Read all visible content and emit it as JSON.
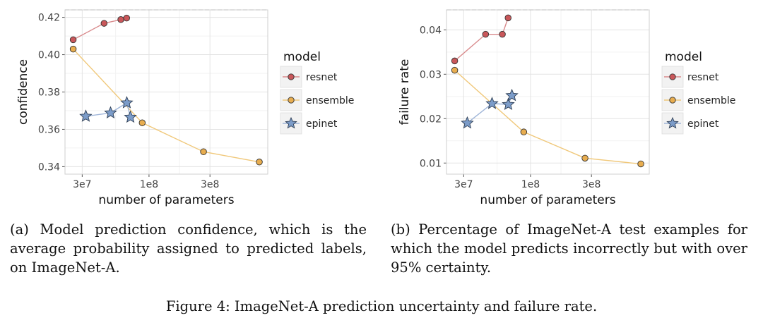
{
  "chart_data": [
    {
      "type": "line",
      "panel": "a",
      "xlabel": "number of parameters",
      "ylabel": "confidence",
      "xscale": "log",
      "xlim": [
        22000000,
        850000000
      ],
      "ylim": [
        0.336,
        0.424
      ],
      "xticks": [
        30000000,
        100000000,
        300000000
      ],
      "xtick_labels": [
        "3e7",
        "1e8",
        "3e8"
      ],
      "yticks": [
        0.34,
        0.36,
        0.38,
        0.4,
        0.42
      ],
      "ytick_labels": [
        "0.34",
        "0.36",
        "0.38",
        "0.40",
        "0.42"
      ],
      "grid": true,
      "legend_title": "model",
      "legend_placement": "right",
      "series": [
        {
          "name": "resnet",
          "color": "#c9575a",
          "line_color": "#d98b8d",
          "marker": "circle",
          "x": [
            25500000,
            44500000,
            60200000,
            66800000
          ],
          "y": [
            0.408,
            0.4168,
            0.4188,
            0.4196
          ]
        },
        {
          "name": "ensemble",
          "color": "#e8ad4f",
          "line_color": "#f0c87a",
          "marker": "circle",
          "x": [
            25500000,
            88500000,
            267000000,
            730000000
          ],
          "y": [
            0.403,
            0.3635,
            0.348,
            0.3425
          ]
        },
        {
          "name": "epinet",
          "color": "#7c9cc9",
          "line_color": "#9fb5d8",
          "marker": "star",
          "x": [
            32000000,
            50000000,
            67000000,
            71500000
          ],
          "y": [
            0.367,
            0.3688,
            0.3742,
            0.3665
          ]
        }
      ]
    },
    {
      "type": "line",
      "panel": "b",
      "xlabel": "number of parameters",
      "ylabel": "failure rate",
      "xscale": "log",
      "xlim": [
        22000000,
        850000000
      ],
      "ylim": [
        0.0075,
        0.0445
      ],
      "xticks": [
        30000000,
        100000000,
        300000000
      ],
      "xtick_labels": [
        "3e7",
        "1e8",
        "3e8"
      ],
      "yticks": [
        0.01,
        0.02,
        0.03,
        0.04
      ],
      "ytick_labels": [
        "0.01",
        "0.02",
        "0.03",
        "0.04"
      ],
      "grid": true,
      "legend_title": "model",
      "legend_placement": "right",
      "series": [
        {
          "name": "resnet",
          "color": "#c9575a",
          "line_color": "#d98b8d",
          "marker": "circle",
          "x": [
            25500000,
            44500000,
            60200000,
            66800000
          ],
          "y": [
            0.033,
            0.039,
            0.039,
            0.0427
          ]
        },
        {
          "name": "ensemble",
          "color": "#e8ad4f",
          "line_color": "#f0c87a",
          "marker": "circle",
          "x": [
            25500000,
            88500000,
            267000000,
            730000000
          ],
          "y": [
            0.0309,
            0.017,
            0.0111,
            0.0098
          ]
        },
        {
          "name": "epinet",
          "color": "#7c9cc9",
          "line_color": "#9fb5d8",
          "marker": "star",
          "x": [
            32000000,
            50000000,
            67000000,
            71500000
          ],
          "y": [
            0.019,
            0.0234,
            0.0232,
            0.0252
          ]
        }
      ]
    }
  ],
  "captions": {
    "a": "(a) Model prediction confidence, which is the average probability assigned to predicted labels, on ImageNet-A.",
    "b": "(b) Percentage of ImageNet-A test examples for which the model predicts incorrectly but with over 95% certainty.",
    "figure": "Figure 4: ImageNet-A prediction uncertainty and failure rate."
  }
}
